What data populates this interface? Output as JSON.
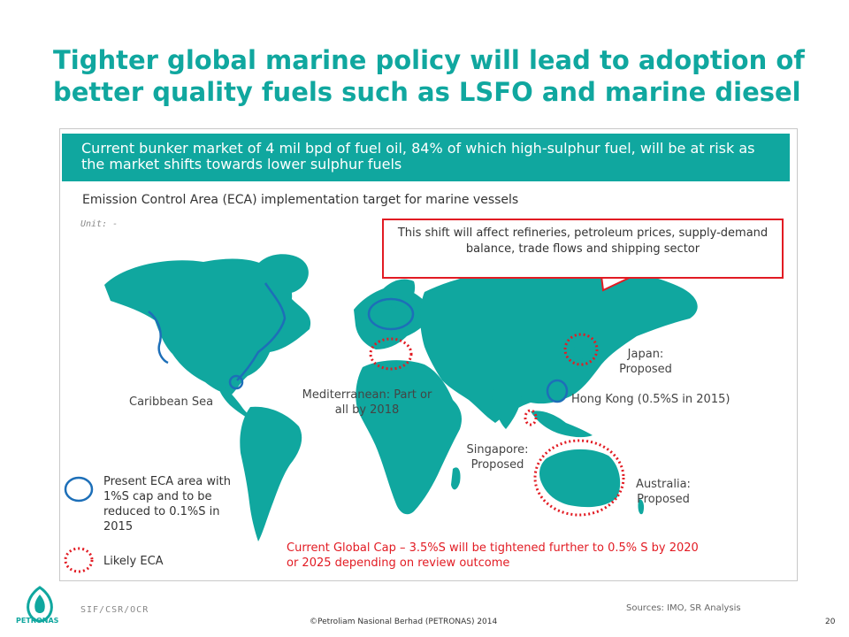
{
  "title": "Tighter global marine policy will lead to adoption of better quality fuels such as LSFO and marine diesel",
  "banner": "Current bunker market of 4 mil bpd of fuel oil, 84% of which high-sulphur fuel, will be at risk as the market shifts towards lower sulphur fuels",
  "subtitle": "Emission Control Area (ECA) implementation target for marine vessels",
  "unit": "Unit: -",
  "callout": "This shift will affect refineries, petroleum prices, supply-demand balance, trade flows and shipping sector",
  "regions": {
    "caribbean": "Caribbean Sea",
    "mediterranean": "Mediterranean: Part or all by 2018",
    "japan": "Japan: Proposed",
    "hongkong": "Hong Kong (0.5%S in 2015)",
    "singapore": "Singapore: Proposed",
    "australia": "Australia: Proposed"
  },
  "legend": {
    "present": "Present ECA area with 1%S cap and to be reduced to 0.1%S in 2015",
    "likely": "Likely ECA"
  },
  "cap_note": "Current Global Cap – 3.5%S will be tightened further to 0.5% S by 2020 or 2025 depending on review outcome",
  "footer": {
    "code": "SIF/CSR/OCR",
    "copyright": "©Petroliam Nasional Berhad (PETRONAS) 2014",
    "sources": "Sources: IMO, SR Analysis",
    "page": "20",
    "logo_text": "PETRONAS"
  },
  "colors": {
    "brand": "#10a79f",
    "land": "#10a79f",
    "present_eca": "#1d6fb8",
    "likely_eca": "#e21b23"
  }
}
